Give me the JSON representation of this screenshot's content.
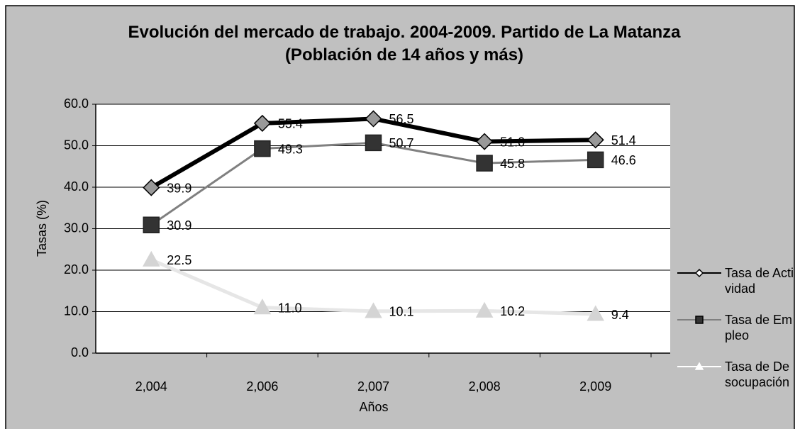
{
  "chart_data": {
    "type": "line",
    "title": "Evolución del mercado de trabajo. 2004-2009. Partido de La Matanza (Población de 14 años y más)",
    "x_label": "Años",
    "y_label": "Tasas (%)",
    "categories": [
      "2,004",
      "2,006",
      "2,007",
      "2,008",
      "2,009"
    ],
    "ylim": [
      0,
      60
    ],
    "yticks": [
      {
        "value": 0,
        "label": "0.0"
      },
      {
        "value": 10,
        "label": "10.0"
      },
      {
        "value": 20,
        "label": "20.0"
      },
      {
        "value": 30,
        "label": "30.0"
      },
      {
        "value": 40,
        "label": "40.0"
      },
      {
        "value": 50,
        "label": "50.0"
      },
      {
        "value": 60,
        "label": "60.0"
      }
    ],
    "grid": true,
    "legend": "right",
    "series": [
      {
        "name": "Tasa de Actividad",
        "color": "#000000",
        "marker": "diamond",
        "values": [
          39.9,
          55.4,
          56.5,
          51.0,
          51.4
        ],
        "value_labels": [
          "39.9",
          "55.4",
          "56.5",
          "51.0",
          "51.4"
        ]
      },
      {
        "name": "Tasa de Empleo",
        "color": "#808080",
        "marker": "square",
        "values": [
          30.9,
          49.3,
          50.7,
          45.8,
          46.6
        ],
        "value_labels": [
          "30.9",
          "49.3",
          "50.7",
          "45.8",
          "46.6"
        ]
      },
      {
        "name": "Tasa de Desocupación",
        "color": "#e6e6e6",
        "marker": "triangle",
        "values": [
          22.5,
          11.0,
          10.1,
          10.2,
          9.4
        ],
        "value_labels": [
          "22.5",
          "11.0",
          "10.1",
          "10.2",
          "9.4"
        ]
      }
    ]
  }
}
